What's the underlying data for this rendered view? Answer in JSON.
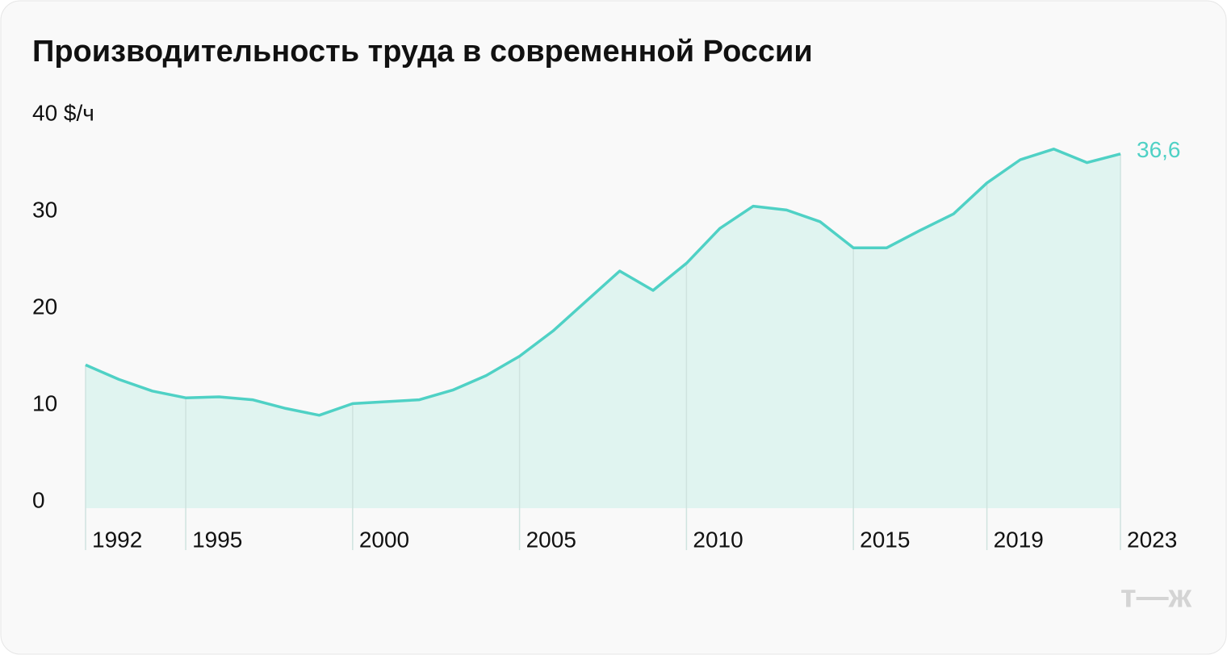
{
  "chart_data": {
    "type": "area",
    "title": "Производительность труда в современной России",
    "x": [
      1992,
      1993,
      1994,
      1995,
      1996,
      1997,
      1998,
      1999,
      2000,
      2001,
      2002,
      2003,
      2004,
      2005,
      2006,
      2007,
      2008,
      2009,
      2010,
      2011,
      2012,
      2013,
      2014,
      2015,
      2016,
      2017,
      2018,
      2019,
      2020,
      2021,
      2022,
      2023
    ],
    "values": [
      14.8,
      13.3,
      12.1,
      11.4,
      11.5,
      11.2,
      10.3,
      9.6,
      10.8,
      11.0,
      11.2,
      12.2,
      13.7,
      15.7,
      18.3,
      21.4,
      24.5,
      22.5,
      25.3,
      28.9,
      31.2,
      30.8,
      29.6,
      26.9,
      26.9,
      28.7,
      30.4,
      33.6,
      36.0,
      37.1,
      35.7,
      36.6
    ],
    "value_labels": [
      null,
      null,
      null,
      null,
      null,
      null,
      null,
      null,
      null,
      null,
      null,
      null,
      null,
      null,
      null,
      null,
      null,
      null,
      null,
      null,
      null,
      null,
      null,
      null,
      null,
      null,
      null,
      null,
      null,
      null,
      null,
      "36,6"
    ],
    "color": "#4fd1c5",
    "area_color": "#e0f4f0",
    "xlim": [
      1992,
      2023
    ],
    "xticks": [
      1992,
      1995,
      2000,
      2005,
      2010,
      2015,
      2019,
      2023
    ],
    "ylim": [
      0,
      40
    ],
    "yticks": [
      0,
      10,
      20,
      30,
      {
        "value": 40,
        "label": "40 $/ч"
      }
    ],
    "grid": false,
    "logo": "т—ж"
  }
}
